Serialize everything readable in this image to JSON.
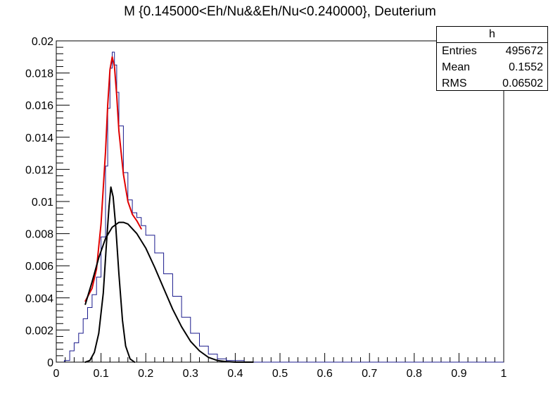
{
  "chart_data": {
    "type": "line",
    "title": "M {0.145000<Eh/Nu&&Eh/Nu<0.240000}, Deuterium",
    "xlim": [
      0,
      1
    ],
    "ylim": [
      0,
      0.02
    ],
    "x_ticks": [
      "0",
      "0.1",
      "0.2",
      "0.3",
      "0.4",
      "0.5",
      "0.6",
      "0.7",
      "0.8",
      "0.9",
      "1"
    ],
    "y_ticks": [
      "0",
      "0.002",
      "0.004",
      "0.006",
      "0.008",
      "0.01",
      "0.012",
      "0.014",
      "0.016",
      "0.018",
      "0.02"
    ],
    "grid": false,
    "series": [
      {
        "kind": "histogram",
        "color": "#1a1a8c",
        "points": [
          [
            0.018,
            0.0001
          ],
          [
            0.03,
            0.0007
          ],
          [
            0.04,
            0.0012
          ],
          [
            0.05,
            0.0018
          ],
          [
            0.06,
            0.0027
          ],
          [
            0.07,
            0.0034
          ],
          [
            0.08,
            0.0042
          ],
          [
            0.09,
            0.0053
          ],
          [
            0.1,
            0.0078
          ],
          [
            0.11,
            0.0122
          ],
          [
            0.115,
            0.0158
          ],
          [
            0.12,
            0.0183
          ],
          [
            0.125,
            0.0193
          ],
          [
            0.13,
            0.0185
          ],
          [
            0.135,
            0.0168
          ],
          [
            0.14,
            0.0147
          ],
          [
            0.15,
            0.0118
          ],
          [
            0.16,
            0.0101
          ],
          [
            0.17,
            0.0093
          ],
          [
            0.18,
            0.009
          ],
          [
            0.19,
            0.0085
          ],
          [
            0.2,
            0.0079
          ],
          [
            0.22,
            0.0068
          ],
          [
            0.24,
            0.0055
          ],
          [
            0.26,
            0.0041
          ],
          [
            0.28,
            0.0028
          ],
          [
            0.3,
            0.0018
          ],
          [
            0.32,
            0.001
          ],
          [
            0.34,
            0.0005
          ],
          [
            0.36,
            0.0002
          ],
          [
            0.38,
            0.0001
          ],
          [
            0.42,
            0.0
          ],
          [
            1.0,
            0.0
          ]
        ]
      },
      {
        "kind": "fit-total",
        "color": "#e00000",
        "points": [
          [
            0.065,
            0.0038
          ],
          [
            0.08,
            0.0046
          ],
          [
            0.09,
            0.0058
          ],
          [
            0.1,
            0.0086
          ],
          [
            0.11,
            0.0131
          ],
          [
            0.115,
            0.016
          ],
          [
            0.12,
            0.0182
          ],
          [
            0.125,
            0.019
          ],
          [
            0.13,
            0.0184
          ],
          [
            0.135,
            0.0166
          ],
          [
            0.14,
            0.0144
          ],
          [
            0.15,
            0.0117
          ],
          [
            0.16,
            0.01
          ],
          [
            0.17,
            0.0092
          ],
          [
            0.18,
            0.0088
          ],
          [
            0.19,
            0.0083
          ]
        ]
      },
      {
        "kind": "fit-gauss",
        "color": "#000000",
        "points": [
          [
            0.065,
            0.0
          ],
          [
            0.075,
            0.0001
          ],
          [
            0.085,
            0.0006
          ],
          [
            0.095,
            0.0018
          ],
          [
            0.105,
            0.0043
          ],
          [
            0.112,
            0.0073
          ],
          [
            0.118,
            0.0097
          ],
          [
            0.122,
            0.0109
          ],
          [
            0.127,
            0.0103
          ],
          [
            0.133,
            0.0084
          ],
          [
            0.14,
            0.0055
          ],
          [
            0.148,
            0.0026
          ],
          [
            0.155,
            0.001
          ],
          [
            0.165,
            0.0002
          ],
          [
            0.175,
            0.0
          ]
        ]
      },
      {
        "kind": "fit-background",
        "color": "#000000",
        "points": [
          [
            0.065,
            0.0036
          ],
          [
            0.08,
            0.005
          ],
          [
            0.095,
            0.0065
          ],
          [
            0.11,
            0.0077
          ],
          [
            0.125,
            0.0084
          ],
          [
            0.14,
            0.0087
          ],
          [
            0.15,
            0.0087
          ],
          [
            0.16,
            0.0086
          ],
          [
            0.18,
            0.008
          ],
          [
            0.2,
            0.0071
          ],
          [
            0.22,
            0.0059
          ],
          [
            0.24,
            0.0046
          ],
          [
            0.26,
            0.0033
          ],
          [
            0.28,
            0.0022
          ],
          [
            0.3,
            0.0013
          ],
          [
            0.32,
            0.0007
          ],
          [
            0.34,
            0.0003
          ],
          [
            0.36,
            0.0001
          ],
          [
            0.38,
            3e-05
          ],
          [
            0.4,
            0.0
          ],
          [
            0.44,
            0.0
          ]
        ]
      }
    ]
  },
  "stats": {
    "title": "h",
    "rows": [
      {
        "label": "Entries",
        "value": "495672"
      },
      {
        "label": "Mean",
        "value": "0.1552"
      },
      {
        "label": "RMS",
        "value": "0.06502"
      }
    ]
  }
}
